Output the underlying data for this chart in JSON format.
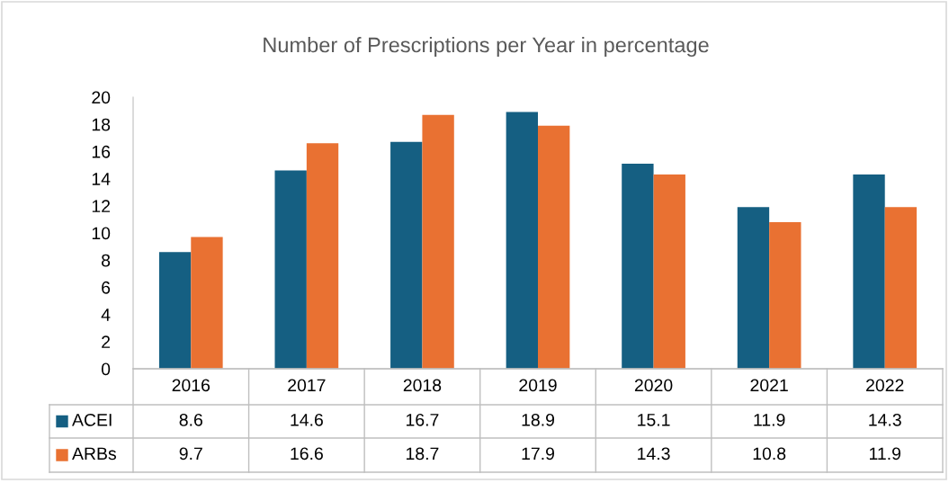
{
  "chart_data": {
    "type": "bar",
    "title": "Number of Prescriptions per Year in percentage",
    "categories": [
      "2016",
      "2017",
      "2018",
      "2019",
      "2020",
      "2021",
      "2022"
    ],
    "series": [
      {
        "name": "ACEI",
        "color": "#155f82",
        "values": [
          8.6,
          14.6,
          16.7,
          18.9,
          15.1,
          11.9,
          14.3
        ]
      },
      {
        "name": "ARBs",
        "color": "#e97132",
        "values": [
          9.7,
          16.6,
          18.7,
          17.9,
          14.3,
          10.8,
          11.9
        ]
      }
    ],
    "ylim": [
      0,
      20
    ],
    "yticks": [
      0,
      2,
      4,
      6,
      8,
      10,
      12,
      14,
      16,
      18,
      20
    ],
    "grid": false,
    "legend": "bottom",
    "data_labels": true
  }
}
